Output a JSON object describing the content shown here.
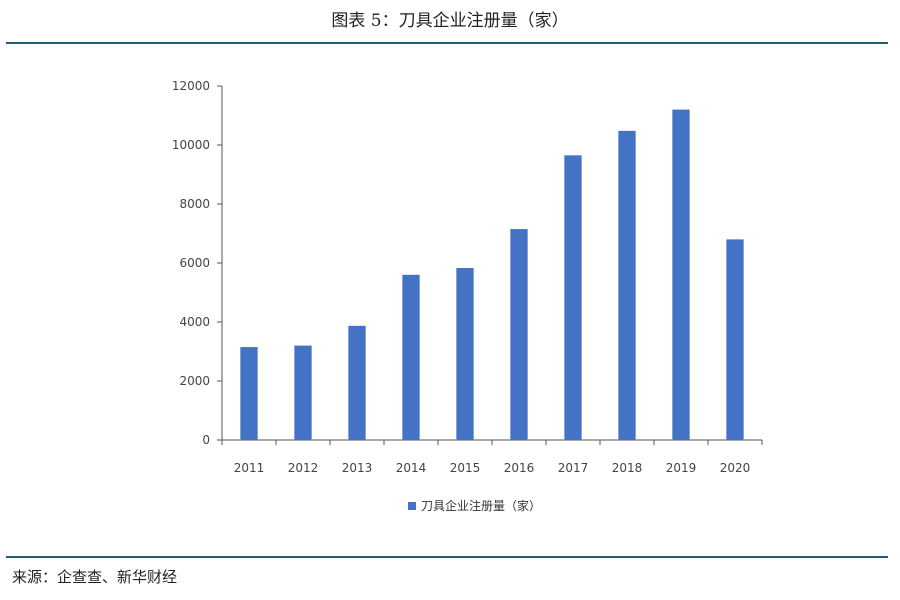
{
  "header": {
    "title": "图表 5：刀具企业注册量（家）"
  },
  "footer": {
    "source": "来源：企查查、新华财经"
  },
  "colors": {
    "bar": "#4472c4",
    "rule": "#1f5f73"
  },
  "chart_data": {
    "type": "bar",
    "title": "",
    "xlabel": "",
    "ylabel": "",
    "categories": [
      "2011",
      "2012",
      "2013",
      "2014",
      "2015",
      "2016",
      "2017",
      "2018",
      "2019",
      "2020"
    ],
    "series": [
      {
        "name": "刀具企业注册量（家）",
        "values": [
          3150,
          3200,
          3870,
          5600,
          5830,
          7150,
          9650,
          10480,
          11200,
          6800
        ]
      }
    ],
    "ylim": [
      0,
      12000
    ],
    "yticks": [
      0,
      2000,
      4000,
      6000,
      8000,
      10000,
      12000
    ],
    "ytick_labels": [
      "0",
      "2000",
      "4000",
      "6000",
      "8000",
      "10000",
      "12000"
    ],
    "grid": false,
    "legend_position": "bottom"
  }
}
